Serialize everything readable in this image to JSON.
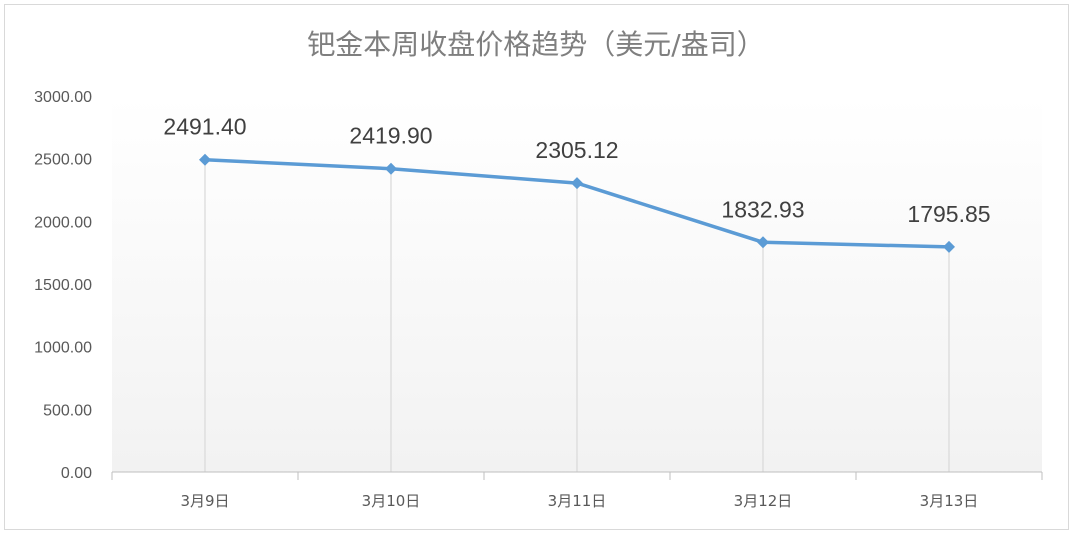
{
  "chart_data": {
    "type": "line",
    "title": "钯金本周收盘价格趋势（美元/盎司）",
    "categories": [
      "3月9日",
      "3月10日",
      "3月11日",
      "3月12日",
      "3月13日"
    ],
    "values": [
      2491.4,
      2419.9,
      2305.12,
      1832.93,
      1795.85
    ],
    "data_labels": [
      "2491.40",
      "2419.90",
      "2305.12",
      "1832.93",
      "1795.85"
    ],
    "ylim": [
      0,
      3000
    ],
    "yticks": [
      "0.00",
      "500.00",
      "1000.00",
      "1500.00",
      "2000.00",
      "2500.00",
      "3000.00"
    ],
    "ytick_values": [
      0,
      500,
      1000,
      1500,
      2000,
      2500,
      3000
    ],
    "xlabel": "",
    "ylabel": "",
    "grid": "vertical drop lines",
    "legend": "none",
    "line_color": "#5b9bd5",
    "marker": "diamond"
  }
}
